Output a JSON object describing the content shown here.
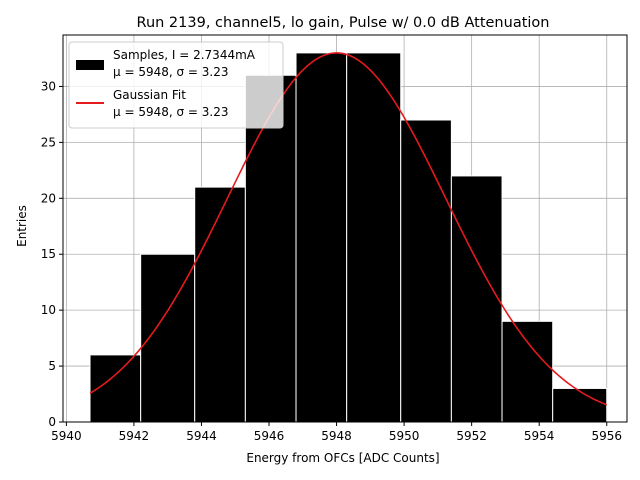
{
  "chart_data": {
    "type": "bar",
    "title": "Run 2139, channel5, lo gain, Pulse w/ 0.0 dB Attenuation",
    "xlabel": "Energy from OFCs [ADC Counts]",
    "ylabel": "Entries",
    "xlim": [
      5939.9,
      5956.6
    ],
    "ylim": [
      0,
      34.6
    ],
    "xticks": [
      5940,
      5942,
      5944,
      5946,
      5948,
      5950,
      5952,
      5954,
      5956
    ],
    "yticks": [
      0,
      5,
      10,
      15,
      20,
      25,
      30
    ],
    "grid": true,
    "bar_color": "#000000",
    "bar_edge_color": "#ffffff",
    "bins": [
      {
        "left": 5940.7,
        "right": 5942.2,
        "count": 6
      },
      {
        "left": 5942.2,
        "right": 5943.8,
        "count": 15
      },
      {
        "left": 5943.8,
        "right": 5945.3,
        "count": 21
      },
      {
        "left": 5945.3,
        "right": 5946.8,
        "count": 31
      },
      {
        "left": 5946.8,
        "right": 5948.3,
        "count": 33
      },
      {
        "left": 5948.3,
        "right": 5949.9,
        "count": 33
      },
      {
        "left": 5949.9,
        "right": 5951.4,
        "count": 27
      },
      {
        "left": 5951.4,
        "right": 5952.9,
        "count": 22
      },
      {
        "left": 5952.9,
        "right": 5954.4,
        "count": 9
      },
      {
        "left": 5954.4,
        "right": 5956.0,
        "count": 3
      }
    ],
    "fit": {
      "type": "gaussian",
      "amplitude": 33.0,
      "mu": 5948.0,
      "sigma": 3.23,
      "x_range": [
        5940.7,
        5956.0
      ],
      "color": "#e41a1c"
    },
    "legend": {
      "position": "top-left",
      "entries": [
        {
          "name": "samples",
          "line1": "Samples, I = 2.7344mA",
          "line2": "μ = 5948, σ = 3.23"
        },
        {
          "name": "gaussian-fit",
          "line1": "Gaussian Fit",
          "line2": "μ = 5948, σ = 3.23"
        }
      ]
    }
  }
}
